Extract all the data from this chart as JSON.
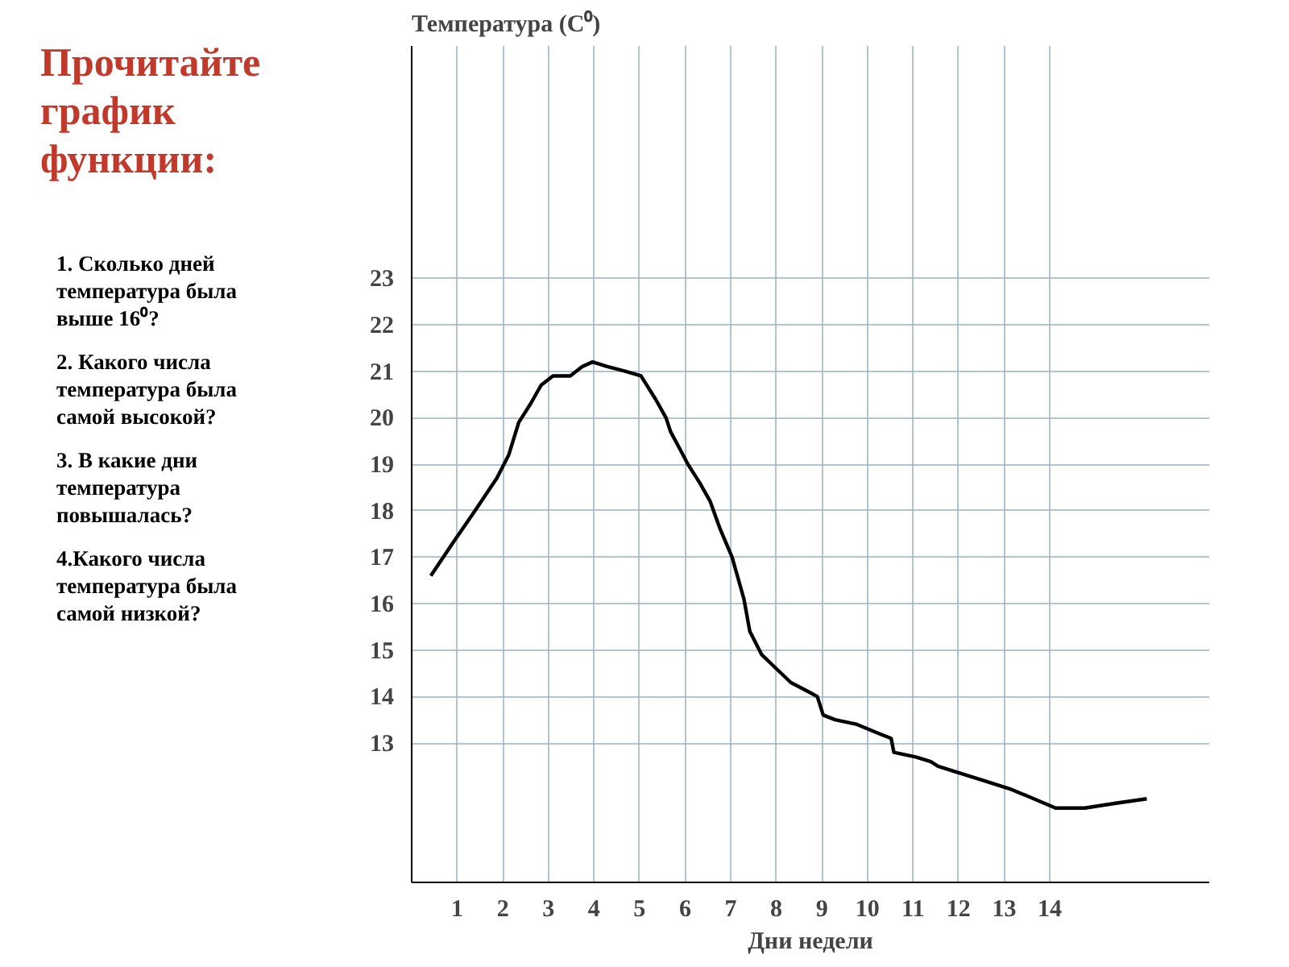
{
  "chart_data": {
    "type": "line",
    "title": "Прочитайте график функции:",
    "xlabel": "Дни недели",
    "ylabel": "Температура (C⁰)",
    "annotations": [
      "1. Сколько дней температура была выше 16⁰?",
      "2. Какого числа температура была самой высокой?",
      "3. В какие дни температура повышалась?",
      "4.Какого числа температура была самой низкой?"
    ],
    "series": [
      {
        "color": "#000000",
        "x": [
          0.42,
          0.9,
          1.39,
          1.87,
          2.13,
          2.35,
          2.61,
          2.84,
          3.1,
          3.48,
          3.74,
          3.97,
          4.29,
          4.68,
          5.03,
          5.35,
          5.58,
          5.68,
          5.9,
          6.06,
          6.32,
          6.55,
          6.77,
          7.03,
          7.29,
          7.42,
          7.68,
          8.0,
          8.32,
          8.71,
          8.9,
          9.03,
          9.29,
          9.77,
          10.26,
          10.52,
          10.58,
          11.06,
          11.39,
          11.55,
          11.87,
          12.52,
          13.16,
          13.65,
          14.13,
          14.77,
          15.42,
          16.13
        ],
        "values": [
          16.6,
          17.3,
          18.0,
          18.7,
          19.2,
          19.9,
          20.3,
          20.7,
          20.9,
          20.9,
          21.1,
          21.2,
          21.1,
          21.0,
          20.9,
          20.4,
          20.0,
          19.7,
          19.3,
          19.0,
          18.6,
          18.2,
          17.6,
          17.0,
          16.1,
          15.4,
          14.9,
          14.6,
          14.3,
          14.1,
          14.0,
          13.6,
          13.5,
          13.4,
          13.2,
          13.1,
          12.8,
          12.7,
          12.6,
          12.5,
          12.4,
          12.2,
          12.0,
          11.8,
          11.6,
          11.6,
          11.7,
          11.8
        ]
      }
    ],
    "xlim": [
      0,
      17.5
    ],
    "ylim": [
      10,
      28
    ],
    "xticks": [
      1,
      2,
      3,
      4,
      5,
      6,
      7,
      8,
      9,
      10,
      11,
      12,
      13,
      14
    ],
    "yticks": [
      13,
      14,
      15,
      16,
      17,
      18,
      19,
      20,
      21,
      22,
      23
    ],
    "grid": true,
    "line_style": "solid"
  }
}
